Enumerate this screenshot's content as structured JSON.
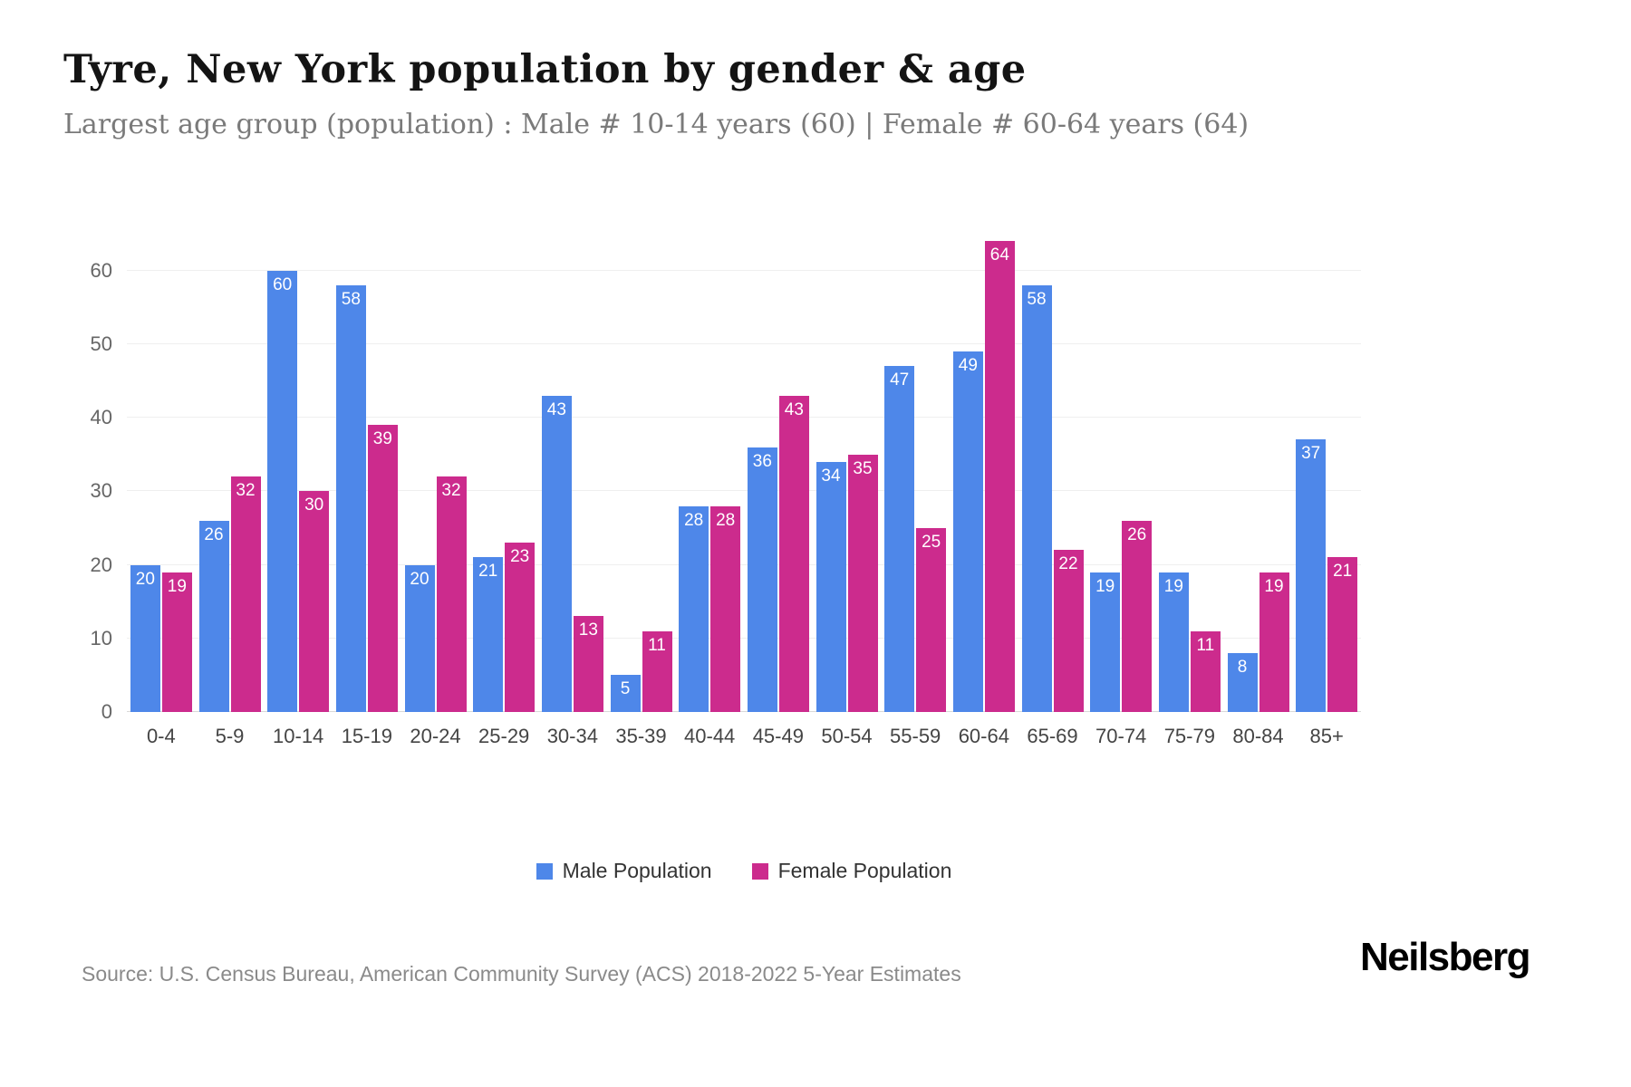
{
  "header": {
    "title": "Tyre, New York population by gender & age",
    "subtitle": "Largest age group (population) : Male # 10-14 years (60) | Female # 60-64 years (64)"
  },
  "chart_data": {
    "type": "bar",
    "categories": [
      "0-4",
      "5-9",
      "10-14",
      "15-19",
      "20-24",
      "25-29",
      "30-34",
      "35-39",
      "40-44",
      "45-49",
      "50-54",
      "55-59",
      "60-64",
      "65-69",
      "70-74",
      "75-79",
      "80-84",
      "85+"
    ],
    "series": [
      {
        "name": "Male Population",
        "color": "#4e87e9",
        "values": [
          20,
          26,
          60,
          58,
          20,
          21,
          43,
          5,
          28,
          36,
          34,
          47,
          49,
          58,
          19,
          19,
          8,
          37
        ]
      },
      {
        "name": "Female Population",
        "color": "#cc2b8d",
        "values": [
          19,
          32,
          30,
          39,
          32,
          23,
          13,
          11,
          28,
          43,
          35,
          25,
          64,
          22,
          26,
          11,
          19,
          21
        ]
      }
    ],
    "title": "Tyre, New York population by gender & age",
    "xlabel": "",
    "ylabel": "",
    "ylim": [
      0,
      65
    ],
    "yticks": [
      0,
      10,
      20,
      30,
      40,
      50,
      60
    ],
    "grid": true,
    "legend_position": "bottom",
    "bar_value_labels": true
  },
  "legend": {
    "items": [
      {
        "label": "Male Population",
        "color": "#4e87e9"
      },
      {
        "label": "Female Population",
        "color": "#cc2b8d"
      }
    ]
  },
  "footer": {
    "source": "Source: U.S. Census Bureau, American Community Survey (ACS) 2018-2022 5-Year Estimates",
    "brand": "Neilsberg"
  }
}
